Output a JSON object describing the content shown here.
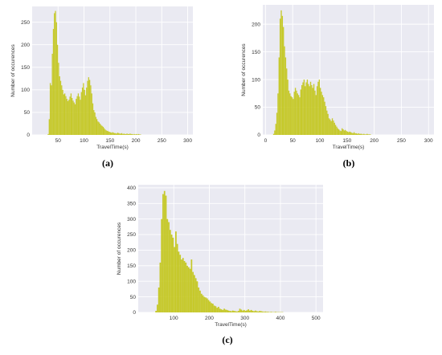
{
  "chart_data": [
    {
      "id": "a",
      "type": "bar",
      "panel_label": "(a)",
      "xlabel": "TravelTime(s)",
      "ylabel": "Number of occurences",
      "xlim": [
        0,
        310
      ],
      "ylim": [
        0,
        285
      ],
      "xticks": [
        50,
        100,
        150,
        200,
        250,
        300
      ],
      "yticks": [
        0,
        50,
        100,
        150,
        200,
        250
      ],
      "grid": true,
      "color": "#c2c61a",
      "background": "#eaeaf2",
      "bin_width": 2,
      "bins": [
        [
          30,
          2
        ],
        [
          32,
          35
        ],
        [
          34,
          115
        ],
        [
          36,
          110
        ],
        [
          38,
          180
        ],
        [
          40,
          235
        ],
        [
          42,
          270
        ],
        [
          44,
          275
        ],
        [
          46,
          250
        ],
        [
          48,
          200
        ],
        [
          50,
          160
        ],
        [
          52,
          130
        ],
        [
          54,
          120
        ],
        [
          56,
          110
        ],
        [
          58,
          100
        ],
        [
          60,
          90
        ],
        [
          62,
          92
        ],
        [
          64,
          86
        ],
        [
          66,
          80
        ],
        [
          68,
          75
        ],
        [
          70,
          78
        ],
        [
          72,
          85
        ],
        [
          74,
          92
        ],
        [
          76,
          82
        ],
        [
          78,
          76
        ],
        [
          80,
          72
        ],
        [
          82,
          68
        ],
        [
          84,
          80
        ],
        [
          86,
          86
        ],
        [
          88,
          92
        ],
        [
          90,
          85
        ],
        [
          92,
          78
        ],
        [
          94,
          95
        ],
        [
          96,
          105
        ],
        [
          98,
          115
        ],
        [
          100,
          100
        ],
        [
          102,
          88
        ],
        [
          104,
          105
        ],
        [
          106,
          120
        ],
        [
          108,
          128
        ],
        [
          110,
          122
        ],
        [
          112,
          110
        ],
        [
          114,
          92
        ],
        [
          116,
          70
        ],
        [
          118,
          55
        ],
        [
          120,
          50
        ],
        [
          122,
          40
        ],
        [
          124,
          35
        ],
        [
          126,
          30
        ],
        [
          128,
          28
        ],
        [
          130,
          25
        ],
        [
          132,
          22
        ],
        [
          134,
          20
        ],
        [
          136,
          18
        ],
        [
          138,
          15
        ],
        [
          140,
          12
        ],
        [
          142,
          10
        ],
        [
          144,
          9
        ],
        [
          146,
          8
        ],
        [
          148,
          7
        ],
        [
          150,
          6
        ],
        [
          152,
          5
        ],
        [
          154,
          6
        ],
        [
          156,
          5
        ],
        [
          158,
          4
        ],
        [
          160,
          4
        ],
        [
          162,
          3
        ],
        [
          164,
          5
        ],
        [
          166,
          4
        ],
        [
          168,
          3
        ],
        [
          170,
          3
        ],
        [
          172,
          4
        ],
        [
          174,
          2
        ],
        [
          176,
          3
        ],
        [
          178,
          2
        ],
        [
          180,
          2
        ],
        [
          182,
          3
        ],
        [
          184,
          2
        ],
        [
          186,
          2
        ],
        [
          188,
          3
        ],
        [
          190,
          2
        ],
        [
          192,
          2
        ],
        [
          194,
          1
        ],
        [
          196,
          2
        ],
        [
          198,
          1
        ],
        [
          200,
          2
        ],
        [
          202,
          1
        ],
        [
          204,
          2
        ],
        [
          206,
          1
        ],
        [
          208,
          1
        ]
      ]
    },
    {
      "id": "b",
      "type": "bar",
      "panel_label": "(b)",
      "xlabel": "TravelTime(s)",
      "ylabel": "Number of occurences",
      "xlim": [
        -5,
        310
      ],
      "ylim": [
        0,
        235
      ],
      "xticks": [
        0,
        50,
        100,
        150,
        200,
        250,
        300
      ],
      "yticks": [
        0,
        50,
        100,
        150,
        200
      ],
      "grid": true,
      "color": "#c2c61a",
      "background": "#eaeaf2",
      "bin_width": 2,
      "bins": [
        [
          14,
          2
        ],
        [
          16,
          8
        ],
        [
          18,
          20
        ],
        [
          20,
          40
        ],
        [
          22,
          75
        ],
        [
          24,
          140
        ],
        [
          26,
          210
        ],
        [
          28,
          225
        ],
        [
          30,
          215
        ],
        [
          32,
          195
        ],
        [
          34,
          160
        ],
        [
          36,
          140
        ],
        [
          38,
          120
        ],
        [
          40,
          100
        ],
        [
          42,
          80
        ],
        [
          44,
          75
        ],
        [
          46,
          70
        ],
        [
          48,
          68
        ],
        [
          50,
          65
        ],
        [
          52,
          78
        ],
        [
          54,
          85
        ],
        [
          56,
          80
        ],
        [
          58,
          75
        ],
        [
          60,
          72
        ],
        [
          62,
          68
        ],
        [
          64,
          82
        ],
        [
          66,
          90
        ],
        [
          68,
          95
        ],
        [
          70,
          100
        ],
        [
          72,
          88
        ],
        [
          74,
          95
        ],
        [
          76,
          100
        ],
        [
          78,
          92
        ],
        [
          80,
          88
        ],
        [
          82,
          96
        ],
        [
          84,
          90
        ],
        [
          86,
          85
        ],
        [
          88,
          92
        ],
        [
          90,
          80
        ],
        [
          92,
          72
        ],
        [
          94,
          88
        ],
        [
          96,
          96
        ],
        [
          98,
          100
        ],
        [
          100,
          85
        ],
        [
          102,
          78
        ],
        [
          104,
          72
        ],
        [
          106,
          68
        ],
        [
          108,
          60
        ],
        [
          110,
          52
        ],
        [
          112,
          44
        ],
        [
          114,
          38
        ],
        [
          116,
          30
        ],
        [
          118,
          28
        ],
        [
          120,
          25
        ],
        [
          122,
          30
        ],
        [
          124,
          26
        ],
        [
          126,
          22
        ],
        [
          128,
          18
        ],
        [
          130,
          15
        ],
        [
          132,
          12
        ],
        [
          134,
          10
        ],
        [
          136,
          8
        ],
        [
          138,
          7
        ],
        [
          140,
          12
        ],
        [
          142,
          10
        ],
        [
          144,
          8
        ],
        [
          146,
          9
        ],
        [
          148,
          7
        ],
        [
          150,
          6
        ],
        [
          152,
          5
        ],
        [
          154,
          6
        ],
        [
          156,
          5
        ],
        [
          158,
          4
        ],
        [
          160,
          3
        ],
        [
          162,
          5
        ],
        [
          164,
          3
        ],
        [
          166,
          3
        ],
        [
          168,
          2
        ],
        [
          170,
          3
        ],
        [
          172,
          2
        ],
        [
          174,
          2
        ],
        [
          176,
          2
        ],
        [
          178,
          1
        ],
        [
          180,
          2
        ],
        [
          182,
          1
        ],
        [
          184,
          1
        ],
        [
          186,
          2
        ],
        [
          188,
          1
        ],
        [
          190,
          1
        ],
        [
          192,
          1
        ]
      ]
    },
    {
      "id": "c",
      "type": "bar",
      "panel_label": "(c)",
      "xlabel": "TravelTime(s)",
      "ylabel": "Number of occurences",
      "xlim": [
        0,
        520
      ],
      "ylim": [
        0,
        410
      ],
      "xticks": [
        100,
        200,
        300,
        400,
        500
      ],
      "yticks": [
        0,
        50,
        100,
        150,
        200,
        250,
        300,
        350,
        400
      ],
      "grid": true,
      "color": "#c2c61a",
      "background": "#eaeaf2",
      "bin_width": 4,
      "bins": [
        [
          48,
          5
        ],
        [
          52,
          25
        ],
        [
          56,
          80
        ],
        [
          60,
          160
        ],
        [
          64,
          300
        ],
        [
          68,
          380
        ],
        [
          72,
          390
        ],
        [
          76,
          375
        ],
        [
          80,
          300
        ],
        [
          84,
          290
        ],
        [
          88,
          265
        ],
        [
          92,
          250
        ],
        [
          96,
          240
        ],
        [
          100,
          210
        ],
        [
          104,
          260
        ],
        [
          108,
          220
        ],
        [
          112,
          195
        ],
        [
          116,
          185
        ],
        [
          120,
          170
        ],
        [
          124,
          175
        ],
        [
          128,
          165
        ],
        [
          132,
          160
        ],
        [
          136,
          150
        ],
        [
          140,
          145
        ],
        [
          144,
          140
        ],
        [
          148,
          170
        ],
        [
          152,
          130
        ],
        [
          156,
          120
        ],
        [
          160,
          110
        ],
        [
          164,
          100
        ],
        [
          168,
          80
        ],
        [
          172,
          70
        ],
        [
          176,
          60
        ],
        [
          180,
          55
        ],
        [
          184,
          50
        ],
        [
          188,
          48
        ],
        [
          192,
          45
        ],
        [
          196,
          40
        ],
        [
          200,
          35
        ],
        [
          204,
          30
        ],
        [
          208,
          28
        ],
        [
          212,
          22
        ],
        [
          216,
          20
        ],
        [
          220,
          15
        ],
        [
          224,
          18
        ],
        [
          228,
          12
        ],
        [
          232,
          10
        ],
        [
          236,
          8
        ],
        [
          240,
          12
        ],
        [
          244,
          9
        ],
        [
          248,
          8
        ],
        [
          252,
          6
        ],
        [
          256,
          5
        ],
        [
          260,
          4
        ],
        [
          264,
          6
        ],
        [
          268,
          5
        ],
        [
          272,
          4
        ],
        [
          276,
          3
        ],
        [
          280,
          5
        ],
        [
          284,
          12
        ],
        [
          288,
          9
        ],
        [
          292,
          6
        ],
        [
          296,
          8
        ],
        [
          300,
          5
        ],
        [
          304,
          7
        ],
        [
          308,
          10
        ],
        [
          312,
          6
        ],
        [
          316,
          8
        ],
        [
          320,
          5
        ],
        [
          324,
          4
        ],
        [
          328,
          6
        ],
        [
          332,
          4
        ],
        [
          336,
          3
        ],
        [
          340,
          5
        ],
        [
          344,
          4
        ],
        [
          348,
          3
        ],
        [
          352,
          2
        ],
        [
          356,
          3
        ],
        [
          360,
          2
        ],
        [
          364,
          2
        ],
        [
          368,
          1
        ],
        [
          372,
          2
        ],
        [
          376,
          1
        ],
        [
          380,
          1
        ],
        [
          384,
          2
        ],
        [
          388,
          1
        ],
        [
          392,
          1
        ],
        [
          396,
          1
        ],
        [
          400,
          1
        ],
        [
          404,
          1
        ]
      ]
    }
  ]
}
